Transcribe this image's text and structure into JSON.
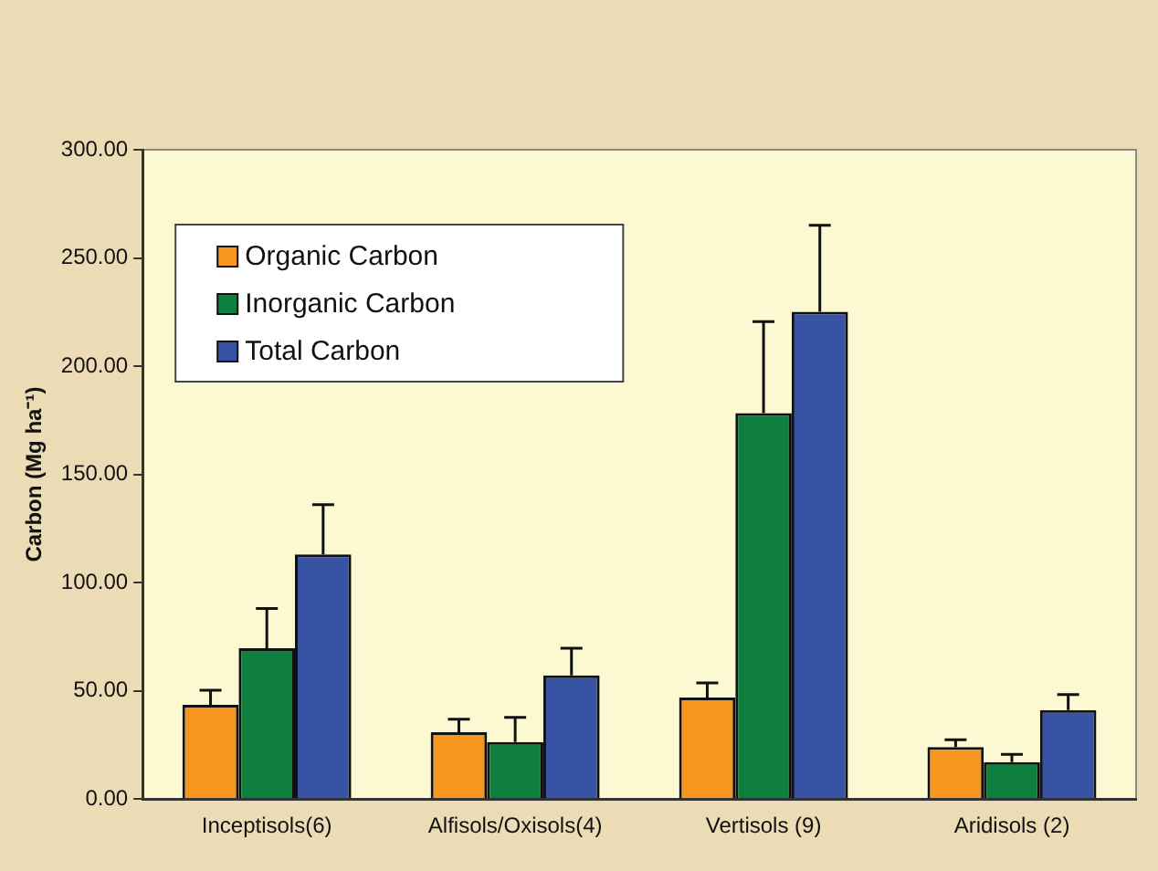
{
  "chart_data": {
    "type": "bar",
    "ylabel": "Carbon (Mg ha⁻¹)",
    "categories": [
      "Inceptisols(6)",
      "Alfisols/Oxisols(4)",
      "Vertisols (9)",
      "Aridisols (2)"
    ],
    "series": [
      {
        "name": "Organic Carbon",
        "color": "#f7961e",
        "values": [
          43.5,
          30.9,
          46.9,
          24.0
        ],
        "errors": [
          [
            43.5,
            50.3
          ],
          [
            30.9,
            36.9
          ],
          [
            46.9,
            53.7
          ],
          [
            24.0,
            27.4
          ]
        ]
      },
      {
        "name": "Inorganic Carbon",
        "color": "#0f7f3f",
        "values": [
          69.7,
          26.3,
          178.3,
          17.1
        ],
        "errors": [
          [
            69.7,
            88.0
          ],
          [
            26.3,
            37.7
          ],
          [
            178.3,
            220.6
          ],
          [
            17.1,
            20.6
          ]
        ]
      },
      {
        "name": "Total Carbon",
        "color": "#3953a4",
        "values": [
          113.0,
          57.1,
          225.1,
          41.1
        ],
        "errors": [
          [
            113.0,
            136.0
          ],
          [
            57.1,
            69.7
          ],
          [
            225.1,
            265.1
          ],
          [
            41.1,
            48.3
          ]
        ]
      }
    ],
    "ylim": [
      0,
      300
    ],
    "yticks": [
      {
        "value": 0,
        "label": "0.00"
      },
      {
        "value": 50,
        "label": "50.00"
      },
      {
        "value": 100,
        "label": "100.00"
      },
      {
        "value": 150,
        "label": "150.00"
      },
      {
        "value": 200,
        "label": "200.00"
      },
      {
        "value": 250,
        "label": "250.00"
      },
      {
        "value": 300,
        "label": "300.00"
      }
    ],
    "grid": false,
    "legend": "top left"
  }
}
